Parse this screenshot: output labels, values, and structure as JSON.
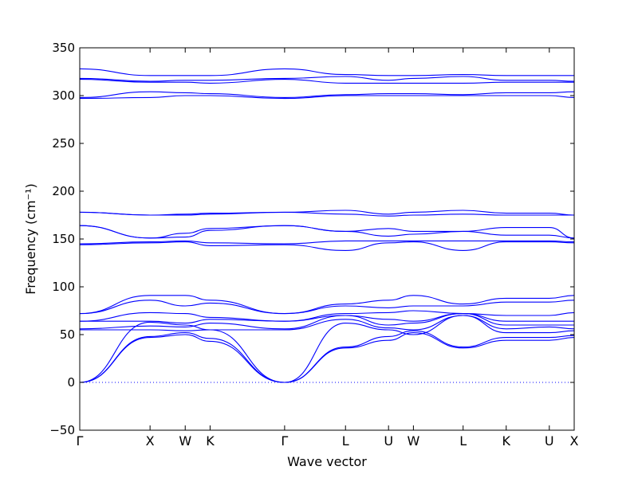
{
  "chart_data": {
    "type": "line",
    "title": "",
    "xlabel": "Wave vector",
    "ylabel": "Frequency (cm⁻¹)",
    "ylim": [
      -50,
      350
    ],
    "yticks": [
      -50,
      0,
      50,
      100,
      150,
      200,
      250,
      300,
      350
    ],
    "grid": false,
    "line_color": "#0000ff",
    "zero_line_style": "dotted",
    "high_symmetry_points": [
      {
        "label": "Γ",
        "x": 0.0
      },
      {
        "label": "X",
        "x": 1.0
      },
      {
        "label": "W",
        "x": 1.5
      },
      {
        "label": "K",
        "x": 1.854
      },
      {
        "label": "Γ",
        "x": 2.914
      },
      {
        "label": "L",
        "x": 3.78
      },
      {
        "label": "U",
        "x": 4.392
      },
      {
        "label": "W",
        "x": 4.746
      },
      {
        "label": "L",
        "x": 5.453
      },
      {
        "label": "K",
        "x": 6.066
      },
      {
        "label": "U",
        "x": 6.679
      },
      {
        "label": "X",
        "x": 7.033
      }
    ],
    "series": [
      {
        "values": [
          0,
          47,
          50,
          43,
          0,
          36,
          44,
          52,
          36,
          44,
          44,
          47
        ]
      },
      {
        "values": [
          0,
          48,
          52,
          46,
          0,
          37,
          48,
          54,
          37,
          47,
          47,
          49
        ]
      },
      {
        "values": [
          0,
          63,
          60,
          55,
          0,
          62,
          55,
          50,
          70,
          52,
          52,
          54
        ]
      },
      {
        "values": [
          55,
          55,
          54,
          55,
          55,
          66,
          57,
          55,
          70,
          56,
          58,
          56
        ]
      },
      {
        "values": [
          56,
          59,
          58,
          62,
          56,
          70,
          60,
          62,
          72,
          60,
          60,
          60
        ]
      },
      {
        "values": [
          64,
          64,
          62,
          66,
          64,
          70,
          66,
          64,
          72,
          64,
          64,
          64
        ]
      },
      {
        "values": [
          64,
          73,
          72,
          68,
          64,
          72,
          73,
          75,
          72,
          70,
          70,
          73
        ]
      },
      {
        "values": [
          72,
          86,
          80,
          83,
          72,
          80,
          78,
          80,
          80,
          84,
          84,
          86
        ]
      },
      {
        "values": [
          72,
          91,
          91,
          86,
          72,
          82,
          86,
          91,
          82,
          88,
          88,
          91
        ]
      },
      {
        "values": [
          144,
          146,
          147,
          143,
          144,
          138,
          146,
          147,
          138,
          147,
          147,
          146
        ]
      },
      {
        "values": [
          145,
          147,
          148,
          146,
          145,
          148,
          148,
          148,
          148,
          148,
          148,
          147
        ]
      },
      {
        "values": [
          164,
          151,
          152,
          159,
          164,
          158,
          153,
          155,
          158,
          154,
          154,
          151
        ]
      },
      {
        "values": [
          164,
          151,
          156,
          161,
          164,
          158,
          161,
          158,
          158,
          162,
          162,
          151
        ]
      },
      {
        "values": [
          178,
          175,
          175,
          176,
          178,
          176,
          174,
          175,
          176,
          175,
          175,
          175
        ]
      },
      {
        "values": [
          178,
          175,
          176,
          177,
          178,
          180,
          176,
          178,
          180,
          177,
          177,
          175
        ]
      },
      {
        "values": [
          297,
          298,
          300,
          300,
          297,
          300,
          300,
          300,
          300,
          300,
          300,
          298
        ]
      },
      {
        "values": [
          298,
          304,
          303,
          302,
          298,
          301,
          302,
          302,
          301,
          303,
          303,
          304
        ]
      },
      {
        "values": [
          317,
          314,
          314,
          313,
          317,
          313,
          313,
          313,
          313,
          314,
          314,
          314
        ]
      },
      {
        "values": [
          318,
          315,
          316,
          316,
          318,
          320,
          316,
          318,
          320,
          316,
          316,
          315
        ]
      },
      {
        "values": [
          328,
          321,
          321,
          321,
          328,
          322,
          321,
          321,
          322,
          321,
          321,
          321
        ]
      }
    ]
  }
}
